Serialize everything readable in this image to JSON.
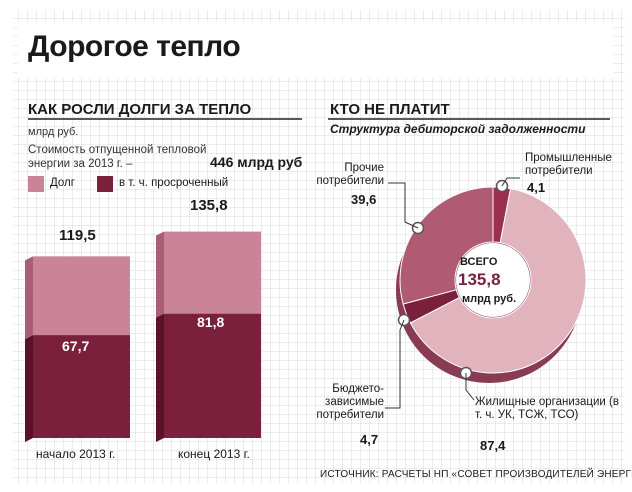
{
  "title": "Дорогое тепло",
  "left": {
    "heading": "КАК РОСЛИ ДОЛГИ ЗА ТЕПЛО",
    "unit": "млрд руб.",
    "note": "Стоимость отпущенной тепловой энергии за 2013 г. –",
    "note_total": "446 млрд руб",
    "legend_debt": "Долг",
    "legend_overdue": "в т. ч. просроченный"
  },
  "right": {
    "heading": "КТО НЕ ПЛАТИТ",
    "subtitle": "Структура дебиторской задолженности",
    "center_top": "ВСЕГО",
    "center_value": "135,8",
    "center_unit": "млрд руб."
  },
  "source": "ИСТОЧНИК: РАСЧЕТЫ НП «СОВЕТ ПРОИЗВОДИТЕЛЕЙ ЭНЕРГИИ»",
  "colors": {
    "debt": "#c98597",
    "overdue": "#7a1f3c",
    "pie_households": "#e0b3bd",
    "pie_other": "#b05a73",
    "pie_industrial": "#9a2f4e",
    "pie_budget": "#7a1f3c",
    "grid": "#c9c9c9"
  },
  "chart_data": [
    {
      "type": "bar",
      "title": "КАК РОСЛИ ДОЛГИ ЗА ТЕПЛО",
      "ylabel": "млрд руб.",
      "categories": [
        "начало 2013 г.",
        "конец 2013 г."
      ],
      "series": [
        {
          "name": "Долг",
          "values": [
            119.5,
            135.8
          ],
          "labels": [
            "119,5",
            "135,8"
          ]
        },
        {
          "name": "в т. ч. просроченный",
          "values": [
            67.7,
            81.8
          ],
          "labels": [
            "67,7",
            "81,8"
          ]
        }
      ],
      "ylim": [
        0,
        140
      ],
      "grid": true
    },
    {
      "type": "pie",
      "title": "КТО НЕ ПЛАТИТ",
      "subtitle": "Структура дебиторской задолженности",
      "total": 135.8,
      "slices": [
        {
          "name": "Промышленные потребители",
          "value": 4.1,
          "label": "4,1"
        },
        {
          "name": "Жилищные организации (в т. ч. УК, ТСЖ, ТСО)",
          "value": 87.4,
          "label": "87,4"
        },
        {
          "name": "Бюджето-зависимые потребители",
          "value": 4.7,
          "label": "4,7"
        },
        {
          "name": "Прочие потребители",
          "value": 39.6,
          "label": "39,6"
        }
      ]
    }
  ]
}
